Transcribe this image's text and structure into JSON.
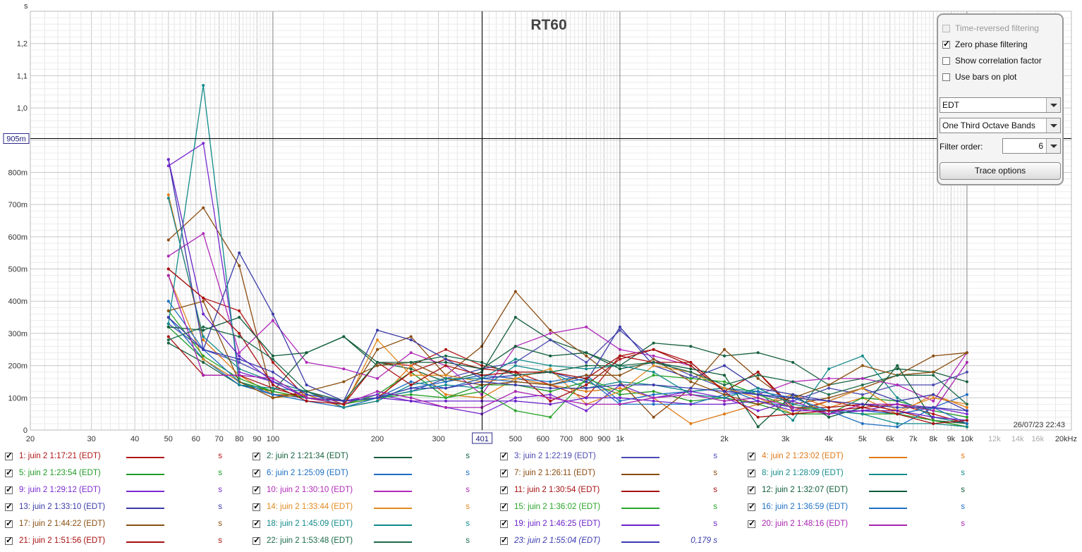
{
  "chart_data": {
    "type": "line",
    "title": "RT60",
    "ylabel": "s",
    "xlabel": "",
    "x_unit_label": "Hz",
    "x_scale": "log",
    "xlim": [
      20,
      20000
    ],
    "ylim": [
      0,
      1.3
    ],
    "x_ticks": [
      {
        "v": 20,
        "label": "20"
      },
      {
        "v": 30,
        "label": "30"
      },
      {
        "v": 40,
        "label": "40"
      },
      {
        "v": 50,
        "label": "50"
      },
      {
        "v": 60,
        "label": "60"
      },
      {
        "v": 70,
        "label": "70"
      },
      {
        "v": 80,
        "label": "80"
      },
      {
        "v": 90,
        "label": "90"
      },
      {
        "v": 100,
        "label": "100"
      },
      {
        "v": 200,
        "label": "200"
      },
      {
        "v": 300,
        "label": "300"
      },
      {
        "v": 500,
        "label": "500"
      },
      {
        "v": 600,
        "label": "600"
      },
      {
        "v": 700,
        "label": "700"
      },
      {
        "v": 800,
        "label": "800"
      },
      {
        "v": 900,
        "label": "900"
      },
      {
        "v": 1000,
        "label": "1k"
      },
      {
        "v": 2000,
        "label": "2k"
      },
      {
        "v": 3000,
        "label": "3k"
      },
      {
        "v": 4000,
        "label": "4k"
      },
      {
        "v": 5000,
        "label": "5k"
      },
      {
        "v": 6000,
        "label": "6k"
      },
      {
        "v": 7000,
        "label": "7k"
      },
      {
        "v": 8000,
        "label": "8k"
      },
      {
        "v": 9000,
        "label": "9k"
      },
      {
        "v": 10000,
        "label": "10k"
      },
      {
        "v": 12000,
        "label": "12k",
        "faded": true
      },
      {
        "v": 14000,
        "label": "14k",
        "faded": true
      },
      {
        "v": 16000,
        "label": "16k",
        "faded": true
      },
      {
        "v": 20000,
        "label": "20kHz"
      }
    ],
    "y_ticks": [
      {
        "v": 0,
        "label": "0"
      },
      {
        "v": 0.1,
        "label": "100m"
      },
      {
        "v": 0.2,
        "label": "200m"
      },
      {
        "v": 0.3,
        "label": "300m"
      },
      {
        "v": 0.4,
        "label": "400m"
      },
      {
        "v": 0.5,
        "label": "500m"
      },
      {
        "v": 0.6,
        "label": "600m"
      },
      {
        "v": 0.7,
        "label": "700m"
      },
      {
        "v": 0.8,
        "label": "800m"
      },
      {
        "v": 1.0,
        "label": "1,0"
      },
      {
        "v": 1.1,
        "label": "1,1"
      },
      {
        "v": 1.2,
        "label": "1,2"
      }
    ],
    "cursor": {
      "x": 401,
      "x_label": "401",
      "y": 0.905,
      "y_label": "905m"
    },
    "timestamp": "26/07/23 22:43",
    "x": [
      50,
      63,
      80,
      100,
      125,
      160,
      200,
      250,
      315,
      400,
      500,
      630,
      800,
      1000,
      1250,
      1600,
      2000,
      2500,
      3150,
      4000,
      5000,
      6300,
      8000,
      10000
    ],
    "series": [
      {
        "name": "1: juin 2 1:17:21 (EDT)",
        "color": "#b01515",
        "values": [
          0.5,
          0.41,
          0.37,
          0.21,
          0.1,
          0.08,
          0.21,
          0.2,
          0.25,
          0.2,
          0.18,
          0.14,
          0.1,
          0.23,
          0.25,
          0.21,
          0.12,
          0.18,
          0.06,
          0.09,
          0.07,
          0.08,
          0.05,
          0.02
        ]
      },
      {
        "name": "2: juin 2 1:21:34 (EDT)",
        "color": "#16603e",
        "values": [
          0.27,
          0.21,
          0.14,
          0.12,
          0.24,
          0.29,
          0.21,
          0.19,
          0.15,
          0.18,
          0.35,
          0.28,
          0.24,
          0.2,
          0.27,
          0.26,
          0.23,
          0.24,
          0.21,
          0.14,
          0.16,
          0.19,
          0.18,
          0.15
        ]
      },
      {
        "name": "3: juin 2 1:22:19 (EDT)",
        "color": "#4b4bb0",
        "values": [
          0.33,
          0.25,
          0.21,
          0.16,
          0.1,
          0.09,
          0.1,
          0.12,
          0.16,
          0.19,
          0.21,
          0.28,
          0.21,
          0.31,
          0.22,
          0.17,
          0.13,
          0.11,
          0.09,
          0.13,
          0.11,
          0.14,
          0.14,
          0.18
        ]
      },
      {
        "name": "4: juin 2 1:23:02 (EDT)",
        "color": "#e07a18",
        "values": [
          0.73,
          0.28,
          0.17,
          0.11,
          0.11,
          0.07,
          0.09,
          0.2,
          0.11,
          0.1,
          0.16,
          0.14,
          0.12,
          0.13,
          0.1,
          0.02,
          0.05,
          0.08,
          0.11,
          0.07,
          0.1,
          0.05,
          0.11,
          0.07
        ]
      },
      {
        "name": "5: juin 2 1:23:54 (EDT)",
        "color": "#1f9a25",
        "values": [
          0.32,
          0.22,
          0.15,
          0.12,
          0.1,
          0.08,
          0.11,
          0.18,
          0.1,
          0.14,
          0.14,
          0.12,
          0.15,
          0.11,
          0.12,
          0.09,
          0.1,
          0.08,
          0.05,
          0.05,
          0.1,
          0.09,
          0.06,
          0.04
        ]
      },
      {
        "name": "6: juin 2 1:25:09 (EDT)",
        "color": "#1a6cbf",
        "values": [
          0.35,
          0.22,
          0.14,
          0.11,
          0.1,
          0.09,
          0.1,
          0.13,
          0.15,
          0.17,
          0.16,
          0.15,
          0.17,
          0.09,
          0.11,
          0.12,
          0.13,
          0.09,
          0.07,
          0.06,
          0.06,
          0.05,
          0.07,
          0.11
        ]
      },
      {
        "name": "7: juin 2 1:26:11 (EDT)",
        "color": "#8a4b10",
        "values": [
          0.59,
          0.69,
          0.51,
          0.1,
          0.12,
          0.08,
          0.25,
          0.29,
          0.17,
          0.26,
          0.43,
          0.31,
          0.23,
          0.15,
          0.04,
          0.13,
          0.25,
          0.16,
          0.08,
          0.1,
          0.13,
          0.17,
          0.23,
          0.24
        ]
      },
      {
        "name": "8: juin 2 1:28:09 (EDT)",
        "color": "#158a8a",
        "values": [
          0.72,
          0.29,
          0.19,
          0.15,
          0.12,
          0.09,
          0.1,
          0.12,
          0.14,
          0.13,
          0.2,
          0.18,
          0.13,
          0.15,
          0.14,
          0.12,
          0.13,
          0.12,
          0.03,
          0.19,
          0.23,
          0.1,
          0.04,
          0.02
        ]
      },
      {
        "name": "9: juin 2 1:29:12 (EDT)",
        "color": "#7a2ad0",
        "values": [
          0.82,
          0.89,
          0.18,
          0.15,
          0.1,
          0.09,
          0.11,
          0.09,
          0.07,
          0.05,
          0.1,
          0.11,
          0.06,
          0.14,
          0.1,
          0.12,
          0.1,
          0.06,
          0.09,
          0.05,
          0.06,
          0.08,
          0.07,
          0.05
        ]
      },
      {
        "name": "10: juin 2 1:30:10 (EDT)",
        "color": "#b02ab8",
        "values": [
          0.54,
          0.61,
          0.24,
          0.34,
          0.21,
          0.19,
          0.16,
          0.24,
          0.2,
          0.11,
          0.26,
          0.3,
          0.32,
          0.25,
          0.23,
          0.2,
          0.12,
          0.11,
          0.15,
          0.16,
          0.16,
          0.14,
          0.09,
          0.24
        ]
      },
      {
        "name": "11: juin 2 1:30:54 (EDT)",
        "color": "#a51010",
        "values": [
          0.29,
          0.17,
          0.17,
          0.13,
          0.1,
          0.08,
          0.1,
          0.18,
          0.22,
          0.19,
          0.18,
          0.09,
          0.14,
          0.22,
          0.25,
          0.2,
          0.12,
          0.18,
          0.07,
          0.07,
          0.08,
          0.06,
          0.03,
          0.01
        ]
      },
      {
        "name": "12: juin 2 1:32:07 (EDT)",
        "color": "#0f5d3a",
        "values": [
          0.32,
          0.31,
          0.35,
          0.23,
          0.24,
          0.29,
          0.2,
          0.21,
          0.21,
          0.19,
          0.26,
          0.23,
          0.24,
          0.19,
          0.21,
          0.19,
          0.17,
          0.01,
          0.11,
          0.04,
          0.07,
          0.2,
          0.03,
          0.02
        ]
      },
      {
        "name": "13: juin 2 1:33:10 (EDT)",
        "color": "#3a3aa8",
        "values": [
          0.84,
          0.25,
          0.55,
          0.36,
          0.14,
          0.09,
          0.31,
          0.28,
          0.22,
          0.16,
          0.17,
          0.18,
          0.15,
          0.32,
          0.2,
          0.16,
          0.2,
          0.13,
          0.11,
          0.09,
          0.13,
          0.09,
          0.11,
          0.06
        ]
      },
      {
        "name": "14: juin 2 1:33:44 (EDT)",
        "color": "#e08a20",
        "values": [
          0.48,
          0.22,
          0.15,
          0.1,
          0.11,
          0.07,
          0.28,
          0.17,
          0.17,
          0.15,
          0.16,
          0.19,
          0.08,
          0.12,
          0.2,
          0.18,
          0.13,
          0.1,
          0.05,
          0.09,
          0.13,
          0.06,
          0.1,
          0.08
        ]
      },
      {
        "name": "15: juin 2 1:36:02 (EDT)",
        "color": "#2aa52a",
        "values": [
          0.37,
          0.23,
          0.16,
          0.12,
          0.1,
          0.08,
          0.1,
          0.11,
          0.1,
          0.12,
          0.06,
          0.04,
          0.16,
          0.12,
          0.17,
          0.16,
          0.15,
          0.11,
          0.07,
          0.06,
          0.05,
          0.05,
          0.03,
          0.01
        ]
      },
      {
        "name": "16: juin 2 1:36:59 (EDT)",
        "color": "#1f6fc2",
        "values": [
          0.4,
          0.25,
          0.15,
          0.11,
          0.09,
          0.07,
          0.1,
          0.15,
          0.13,
          0.16,
          0.15,
          0.14,
          0.16,
          0.08,
          0.08,
          0.08,
          0.11,
          0.12,
          0.1,
          0.06,
          0.02,
          0.01,
          0.07,
          0.02
        ]
      },
      {
        "name": "17: juin 2 1:44:22 (EDT)",
        "color": "#8a5010",
        "values": [
          0.37,
          0.4,
          0.15,
          0.1,
          0.12,
          0.15,
          0.2,
          0.21,
          0.16,
          0.14,
          0.15,
          0.14,
          0.17,
          0.17,
          0.22,
          0.15,
          0.11,
          0.08,
          0.1,
          0.14,
          0.2,
          0.17,
          0.18,
          0.24
        ]
      },
      {
        "name": "18: juin 2 1:45:09 (EDT)",
        "color": "#128a8a",
        "values": [
          0.33,
          1.07,
          0.14,
          0.13,
          0.12,
          0.07,
          0.09,
          0.14,
          0.16,
          0.16,
          0.22,
          0.2,
          0.19,
          0.2,
          0.18,
          0.11,
          0.1,
          0.13,
          0.08,
          0.06,
          0.05,
          0.02,
          0.02,
          0.01
        ]
      },
      {
        "name": "19: juin 2 1:46:25 (EDT)",
        "color": "#6a22c8",
        "values": [
          0.84,
          0.36,
          0.23,
          0.15,
          0.1,
          0.09,
          0.1,
          0.09,
          0.09,
          0.09,
          0.09,
          0.08,
          0.1,
          0.1,
          0.09,
          0.08,
          0.08,
          0.09,
          0.06,
          0.06,
          0.06,
          0.06,
          0.04,
          0.03
        ]
      },
      {
        "name": "20: juin 2 1:48:16 (EDT)",
        "color": "#a822b0",
        "values": [
          0.48,
          0.17,
          0.17,
          0.16,
          0.1,
          0.08,
          0.12,
          0.1,
          0.07,
          0.07,
          0.12,
          0.1,
          0.08,
          0.08,
          0.1,
          0.11,
          0.09,
          0.1,
          0.07,
          0.05,
          0.08,
          0.08,
          0.06,
          0.21
        ]
      },
      {
        "name": "21: juin 2 1:51:56 (EDT)",
        "color": "#a81010",
        "values": [
          0.5,
          0.41,
          0.3,
          0.14,
          0.09,
          0.08,
          0.21,
          0.14,
          0.2,
          0.17,
          0.18,
          0.18,
          0.16,
          0.23,
          0.21,
          0.21,
          0.12,
          0.04,
          0.05,
          0.06,
          0.07,
          0.05,
          0.02,
          0.03
        ]
      },
      {
        "name": "22: juin 2 1:53:48 (EDT)",
        "color": "#1a6a4a",
        "values": [
          0.28,
          0.32,
          0.29,
          0.22,
          0.12,
          0.09,
          0.21,
          0.21,
          0.23,
          0.21,
          0.17,
          0.18,
          0.2,
          0.2,
          0.21,
          0.18,
          0.14,
          0.17,
          0.15,
          0.11,
          0.14,
          0.17,
          0.17,
          0.08
        ]
      },
      {
        "name": "23: juin 2 1:55:04 (EDT)",
        "color": "#3a3ab0",
        "values": [
          0.35,
          0.25,
          0.22,
          0.18,
          0.11,
          0.09,
          0.1,
          0.13,
          0.13,
          0.15,
          0.14,
          0.13,
          0.13,
          0.14,
          0.14,
          0.13,
          0.12,
          0.11,
          0.1,
          0.09,
          0.08,
          0.07,
          0.07,
          0.06
        ],
        "italic": true,
        "value_text": "0,179 s"
      }
    ]
  },
  "legend": {
    "unit_text": "s"
  },
  "controls": {
    "time_reversed_label": "Time-reversed filtering",
    "time_reversed_checked": false,
    "time_reversed_disabled": true,
    "zero_phase_label": "Zero phase filtering",
    "zero_phase_checked": true,
    "show_correlation_label": "Show correlation factor",
    "show_correlation_checked": false,
    "use_bars_label": "Use bars on plot",
    "use_bars_checked": false,
    "metric_select": "EDT",
    "bands_select": "One Third Octave Bands",
    "filter_order_label": "Filter order:",
    "filter_order_value": "6",
    "trace_options_label": "Trace options"
  }
}
